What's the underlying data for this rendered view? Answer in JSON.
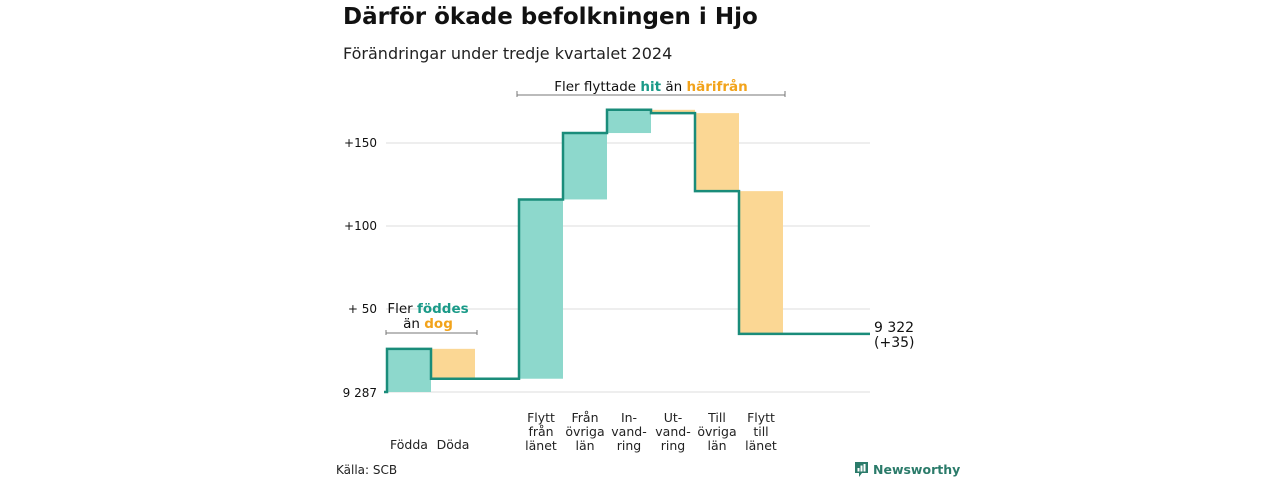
{
  "header": {
    "title": "Därför ökade befolkningen i Hjo",
    "subtitle": "Förändringar under tredje kvartalet 2024"
  },
  "footer": {
    "source": "Källa: SCB",
    "brand": "Newsworthy",
    "brand_icon": "chart-logo-icon"
  },
  "colors": {
    "increase": "#8dd8cc",
    "decrease": "#fbd794",
    "line": "#1a8c7a",
    "teal_text": "#1a9a88",
    "orange_text": "#f2a31b",
    "grid": "#dddddd"
  },
  "annotations": {
    "birth": {
      "line1_prefix": "Fler ",
      "line1_highlight": "föddes",
      "line2_prefix": "än ",
      "line2_highlight": "dog"
    },
    "migration": {
      "prefix": "Fler flyttade ",
      "highlight1": "hit",
      "middle": " än ",
      "highlight2": "härifrån"
    }
  },
  "chart_data": {
    "type": "waterfall",
    "start_value": 0,
    "start_label": "9 287",
    "end_label_line1": "9 322",
    "end_label_line2": "(+35)",
    "end_value": 35,
    "y_ticks": [
      {
        "value": 50,
        "label": "+ 50"
      },
      {
        "value": 100,
        "label": "+100"
      },
      {
        "value": 150,
        "label": "+150"
      }
    ],
    "ylim": [
      0,
      170
    ],
    "grid": true,
    "groups": [
      {
        "items": [
          {
            "label_lines": [
              "Födda"
            ],
            "change": 26,
            "direction": "increase"
          },
          {
            "label_lines": [
              "Döda"
            ],
            "change": -18,
            "direction": "decrease"
          }
        ]
      },
      {
        "items": [
          {
            "label_lines": [
              "Flytt",
              "från",
              "länet"
            ],
            "change": 108,
            "direction": "increase"
          },
          {
            "label_lines": [
              "Från",
              "övriga",
              "län"
            ],
            "change": 40,
            "direction": "increase"
          },
          {
            "label_lines": [
              "In-",
              "vand-",
              "ring"
            ],
            "change": 14,
            "direction": "increase"
          },
          {
            "label_lines": [
              "Ut-",
              "vand-",
              "ring"
            ],
            "change": -2,
            "direction": "decrease"
          },
          {
            "label_lines": [
              "Till",
              "övriga",
              "län"
            ],
            "change": -47,
            "direction": "decrease"
          },
          {
            "label_lines": [
              "Flytt",
              "till",
              "länet"
            ],
            "change": -86,
            "direction": "decrease"
          }
        ]
      }
    ]
  }
}
